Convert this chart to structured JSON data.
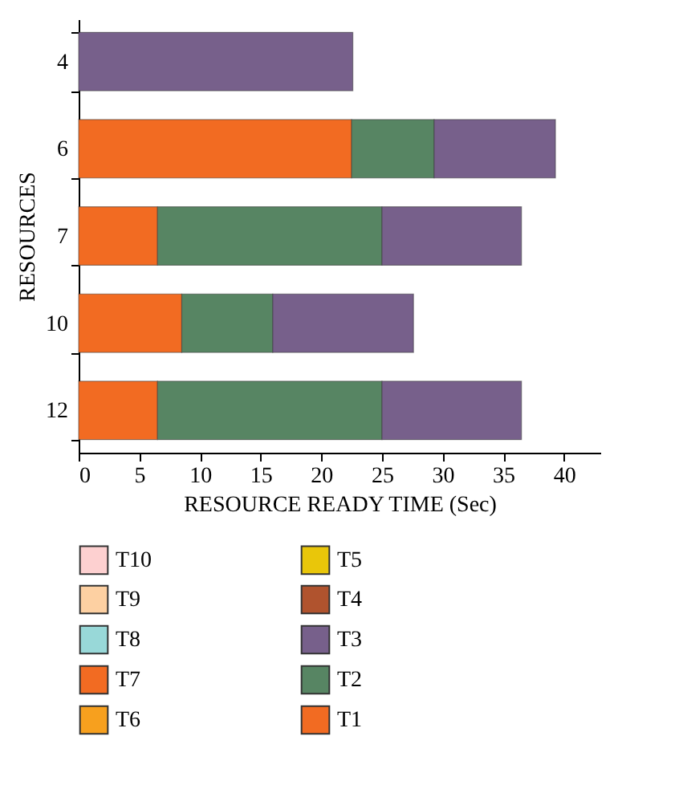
{
  "chart_data": {
    "type": "bar",
    "orientation": "horizontal",
    "stacked": true,
    "xlabel": "RESOURCE READY TIME (Sec)",
    "ylabel": "RESOURCES",
    "categories": [
      "4",
      "6",
      "7",
      "10",
      "12"
    ],
    "series": [
      {
        "name": "T1",
        "color": "#f26b22",
        "values": [
          null,
          22.5,
          6.5,
          8.5,
          6.5
        ]
      },
      {
        "name": "T2",
        "color": "#578563",
        "values": [
          null,
          6.8,
          18.5,
          7.5,
          18.5
        ]
      },
      {
        "name": "T3",
        "color": "#77608b",
        "values": [
          22.6,
          10.0,
          11.5,
          11.6,
          11.5
        ]
      },
      {
        "name": "T4",
        "color": "#b0532e",
        "values": [
          null,
          null,
          null,
          null,
          null
        ]
      },
      {
        "name": "T5",
        "color": "#e9c60a",
        "values": [
          null,
          null,
          null,
          null,
          null
        ]
      },
      {
        "name": "T6",
        "color": "#f7a01e",
        "values": [
          null,
          null,
          null,
          null,
          null
        ]
      },
      {
        "name": "T7",
        "color": "#f26b22",
        "values": [
          null,
          null,
          null,
          null,
          null
        ]
      },
      {
        "name": "T8",
        "color": "#98d8d8",
        "values": [
          null,
          null,
          null,
          null,
          null
        ]
      },
      {
        "name": "T9",
        "color": "#fdd0a2",
        "values": [
          null,
          null,
          null,
          null,
          null
        ]
      },
      {
        "name": "T10",
        "color": "#fdd0d0",
        "values": [
          null,
          null,
          null,
          null,
          null
        ]
      }
    ],
    "xlim": [
      0,
      43
    ],
    "xticks": [
      0,
      5,
      10,
      15,
      20,
      25,
      30,
      35,
      40
    ],
    "grid": false,
    "legend": "bottom"
  }
}
